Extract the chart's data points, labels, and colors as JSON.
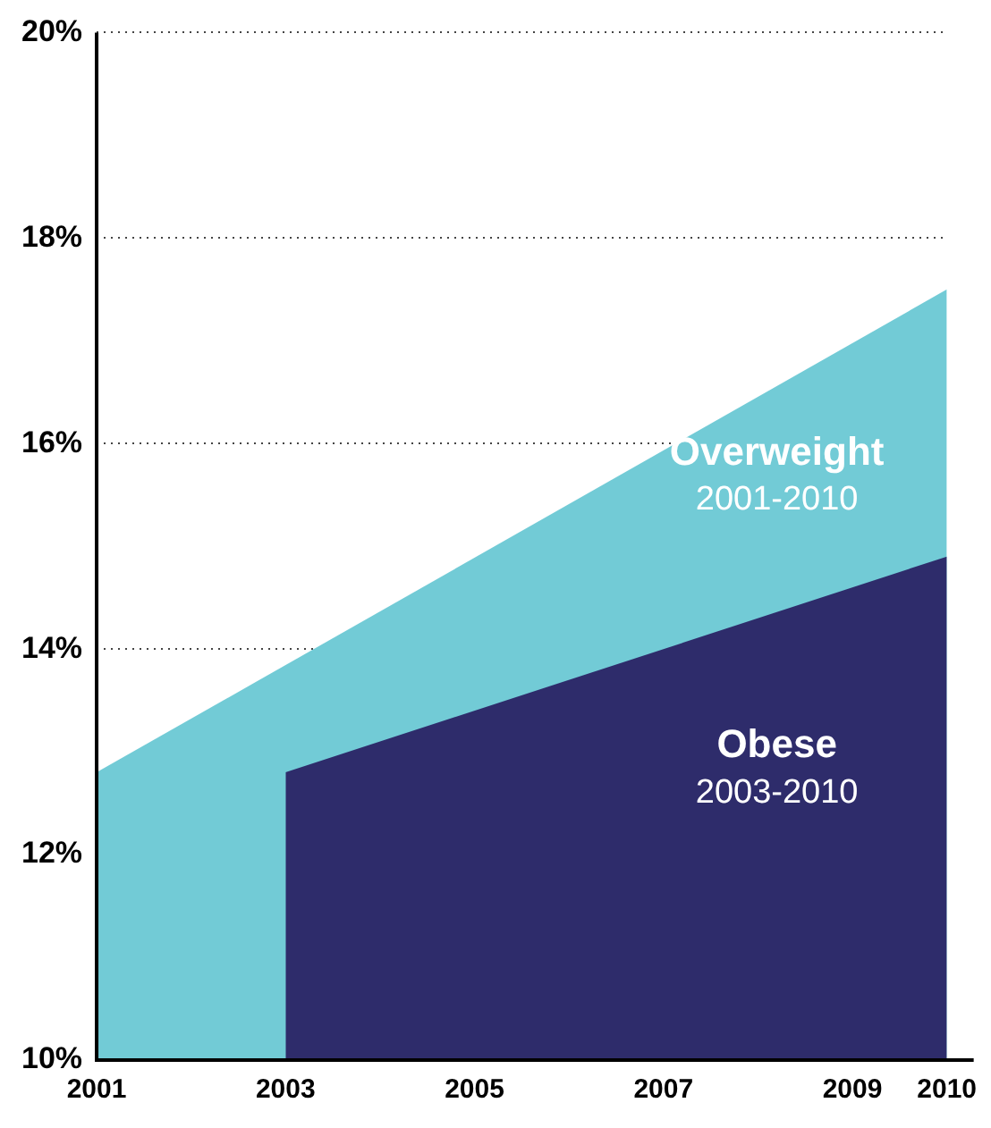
{
  "chart_data": {
    "type": "area",
    "xlim": [
      2001,
      2010
    ],
    "xticks": [
      2001,
      2003,
      2005,
      2007,
      2009,
      2010
    ],
    "ylim": [
      10,
      20
    ],
    "yticks": [
      {
        "value": 10,
        "label": "10%"
      },
      {
        "value": 12,
        "label": "12%"
      },
      {
        "value": 14,
        "label": "14%"
      },
      {
        "value": 16,
        "label": "16%"
      },
      {
        "value": 18,
        "label": "18%"
      },
      {
        "value": 20,
        "label": "20%"
      }
    ],
    "series": [
      {
        "name": "Overweight",
        "color": "#72cbd6",
        "x": [
          2001,
          2010
        ],
        "values": [
          12.8,
          17.5
        ]
      },
      {
        "name": "Obese",
        "color": "#2e2c6b",
        "x": [
          2003,
          2010
        ],
        "values": [
          12.8,
          14.9
        ]
      }
    ],
    "annotations": [
      "2001-2010",
      "2003-2010"
    ],
    "grid": "y",
    "legend": false,
    "marker": "none"
  }
}
